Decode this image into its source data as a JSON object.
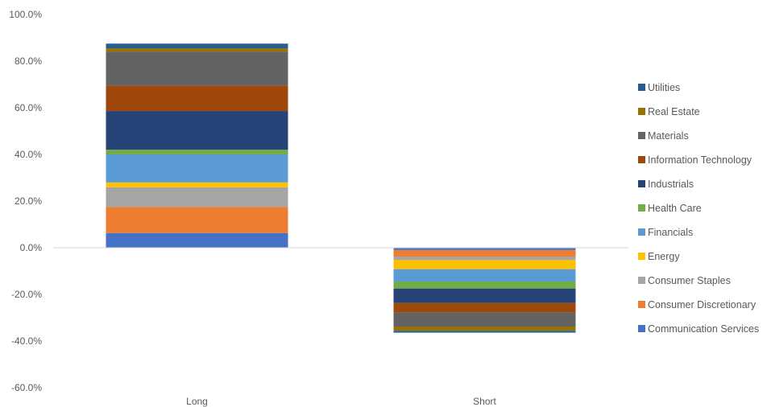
{
  "chart_data": {
    "type": "bar",
    "stacked": true,
    "categories": [
      "Long",
      "Short"
    ],
    "ylim": [
      -60,
      100
    ],
    "yticks": [
      100,
      80,
      60,
      40,
      20,
      0,
      -20,
      -40,
      -60
    ],
    "ytick_labels": [
      "100.0%",
      "80.0%",
      "60.0%",
      "40.0%",
      "20.0%",
      "0.0%",
      "-20.0%",
      "-40.0%",
      "-60.0%"
    ],
    "grid": false,
    "legend_position": "right",
    "series": [
      {
        "name": "Communication Services",
        "color": "#4472C4",
        "values": [
          6.3,
          -1.0
        ]
      },
      {
        "name": "Consumer Discretionary",
        "color": "#ED7D31",
        "values": [
          11.2,
          -2.8
        ]
      },
      {
        "name": "Consumer Staples",
        "color": "#A5A5A5",
        "values": [
          8.4,
          -1.5
        ]
      },
      {
        "name": "Energy",
        "color": "#FFC000",
        "values": [
          2.1,
          -3.9
        ]
      },
      {
        "name": "Financials",
        "color": "#5B9BD5",
        "values": [
          12.0,
          -5.3
        ]
      },
      {
        "name": "Health Care",
        "color": "#70AD47",
        "values": [
          2.0,
          -3.0
        ]
      },
      {
        "name": "Industrials",
        "color": "#264478",
        "values": [
          16.6,
          -6.2
        ]
      },
      {
        "name": "Information Technology",
        "color": "#9E480E",
        "values": [
          11.0,
          -4.1
        ]
      },
      {
        "name": "Materials",
        "color": "#636363",
        "values": [
          14.5,
          -6.0
        ]
      },
      {
        "name": "Real Estate",
        "color": "#997300",
        "values": [
          1.4,
          -1.8
        ]
      },
      {
        "name": "Utilities",
        "color": "#255E91",
        "values": [
          2.0,
          -0.8
        ]
      }
    ]
  }
}
